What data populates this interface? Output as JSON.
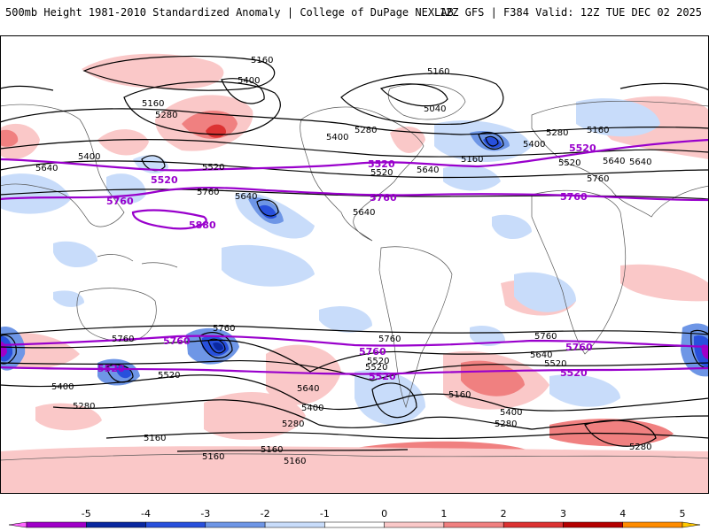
{
  "header": {
    "title_left": "500mb Height 1981-2010 Standardized Anomaly | College of DuPage NEXLAB",
    "title_right": "12Z GFS | F384 Valid: 12Z TUE DEC 02 2025"
  },
  "map": {
    "contour_labels": [
      {
        "id": "c1",
        "text": "5160"
      },
      {
        "id": "c2",
        "text": "5400"
      },
      {
        "id": "c3",
        "text": "5160"
      },
      {
        "id": "c4",
        "text": "5280"
      },
      {
        "id": "c5",
        "text": "5160"
      },
      {
        "id": "c6",
        "text": "5040"
      },
      {
        "id": "c7",
        "text": "5280"
      },
      {
        "id": "c8",
        "text": "5400"
      },
      {
        "id": "c9",
        "text": "5400"
      },
      {
        "id": "c10",
        "text": "5640"
      },
      {
        "id": "c11",
        "text": "5520"
      },
      {
        "id": "c12",
        "text": "5640"
      },
      {
        "id": "c13",
        "text": "5520"
      },
      {
        "id": "c14",
        "text": "5640"
      },
      {
        "id": "c15",
        "text": "5400"
      },
      {
        "id": "c16",
        "text": "5280"
      },
      {
        "id": "c17",
        "text": "5160"
      },
      {
        "id": "c18",
        "text": "5160"
      },
      {
        "id": "c19",
        "text": "5520"
      },
      {
        "id": "c20",
        "text": "5640"
      },
      {
        "id": "c21",
        "text": "5760"
      },
      {
        "id": "c22",
        "text": "5640"
      },
      {
        "id": "c23",
        "text": "5760"
      },
      {
        "id": "c24",
        "text": "5640"
      },
      {
        "id": "c25",
        "text": "5520"
      },
      {
        "id": "c26",
        "text": "5400"
      },
      {
        "id": "c27",
        "text": "5280"
      },
      {
        "id": "c28",
        "text": "5160"
      },
      {
        "id": "c29",
        "text": "5760"
      },
      {
        "id": "c30",
        "text": "5520"
      },
      {
        "id": "c31",
        "text": "5760"
      },
      {
        "id": "c32",
        "text": "5640"
      },
      {
        "id": "c33",
        "text": "5400"
      },
      {
        "id": "c34",
        "text": "5280"
      },
      {
        "id": "c35",
        "text": "5160"
      },
      {
        "id": "c36",
        "text": "5160"
      },
      {
        "id": "c37",
        "text": "5760"
      },
      {
        "id": "c38",
        "text": "5520"
      },
      {
        "id": "c39",
        "text": "5760"
      },
      {
        "id": "c40",
        "text": "5640"
      },
      {
        "id": "c41",
        "text": "5520"
      },
      {
        "id": "c42",
        "text": "5400"
      },
      {
        "id": "c43",
        "text": "5280"
      },
      {
        "id": "c44",
        "text": "5160"
      },
      {
        "id": "c45",
        "text": "5160"
      },
      {
        "id": "c46",
        "text": "5280"
      }
    ],
    "highlight_labels": [
      {
        "id": "h1",
        "text": "5880"
      },
      {
        "id": "h2",
        "text": "5760"
      },
      {
        "id": "h3",
        "text": "5760"
      },
      {
        "id": "h4",
        "text": "5760"
      },
      {
        "id": "h5",
        "text": "5520"
      },
      {
        "id": "h6",
        "text": "5520"
      },
      {
        "id": "h7",
        "text": "5520"
      },
      {
        "id": "h8",
        "text": "5760"
      },
      {
        "id": "h9",
        "text": "5760"
      },
      {
        "id": "h10",
        "text": "5760"
      },
      {
        "id": "h11",
        "text": "5520"
      },
      {
        "id": "h12",
        "text": "5520"
      },
      {
        "id": "h13",
        "text": "5520"
      }
    ]
  },
  "legend": {
    "ticks": [
      "-5",
      "-4",
      "-3",
      "-2",
      "-1",
      "0",
      "1",
      "2",
      "3",
      "4",
      "5"
    ],
    "colors": [
      "#ff66ff",
      "#a000c8",
      "#0a28a0",
      "#2850dc",
      "#6e96e6",
      "#c8dcfa",
      "#ffffff",
      "#fac8c8",
      "#f08080",
      "#dc3232",
      "#b40000",
      "#ff8c00",
      "#ffc800"
    ]
  },
  "colors": {
    "contour": "#000000",
    "highlight": "#9900cc",
    "neg1": "#c8dcfa",
    "neg2": "#6e96e6",
    "neg3": "#2850dc",
    "pos1": "#fac8c8",
    "pos2": "#f08080",
    "pos3": "#dc3232"
  }
}
